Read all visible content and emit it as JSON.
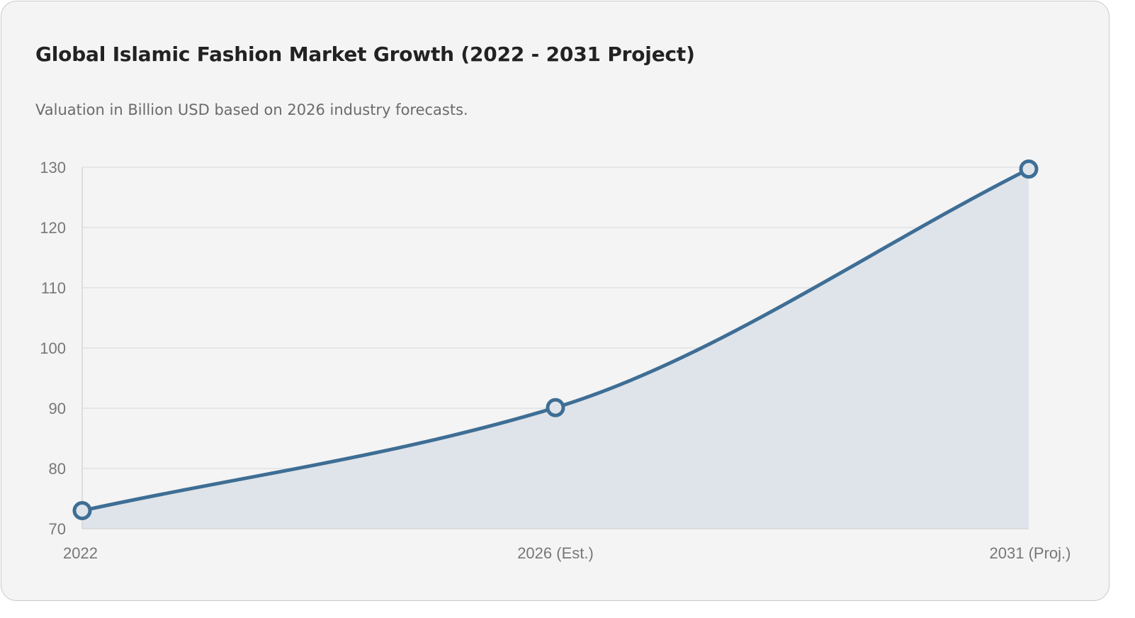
{
  "header": {
    "title": "Global Islamic Fashion Market Growth (2022 - 2031 Project)",
    "subtitle": "Valuation in Billion USD based on 2026 industry forecasts."
  },
  "chart_data": {
    "type": "line",
    "categories": [
      "2022",
      "2026 (Est.)",
      "2031 (Proj.)"
    ],
    "series": [
      {
        "values": [
          73,
          90.1,
          129.7
        ]
      }
    ],
    "title": "Global Islamic Fashion Market Growth (2022 - 2031 Project)",
    "subtitle": "Valuation in Billion USD based on 2026 industry forecasts.",
    "xlabel": "",
    "ylabel": "",
    "ylim": [
      70,
      130
    ],
    "yticks": [
      "70",
      "80",
      "90",
      "100",
      "110",
      "120",
      "130"
    ],
    "grid": true,
    "legend": "none",
    "area_fill": true,
    "smooth": true,
    "colors": {
      "line": "#3e6e95",
      "fill": "#dfe4ea",
      "grid": "#e2e2e2",
      "axis": "#d6d6d6",
      "tick_text": "#777777"
    }
  }
}
